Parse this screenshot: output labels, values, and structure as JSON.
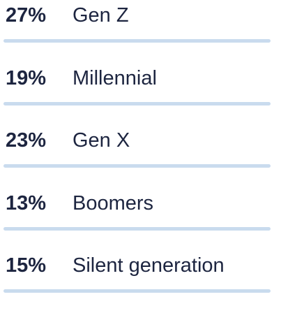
{
  "items": [
    {
      "percent": "27%",
      "label": "Gen Z"
    },
    {
      "percent": "19%",
      "label": "Millennial"
    },
    {
      "percent": "23%",
      "label": "Gen X"
    },
    {
      "percent": "13%",
      "label": "Boomers"
    },
    {
      "percent": "15%",
      "label": "Silent generation"
    }
  ]
}
